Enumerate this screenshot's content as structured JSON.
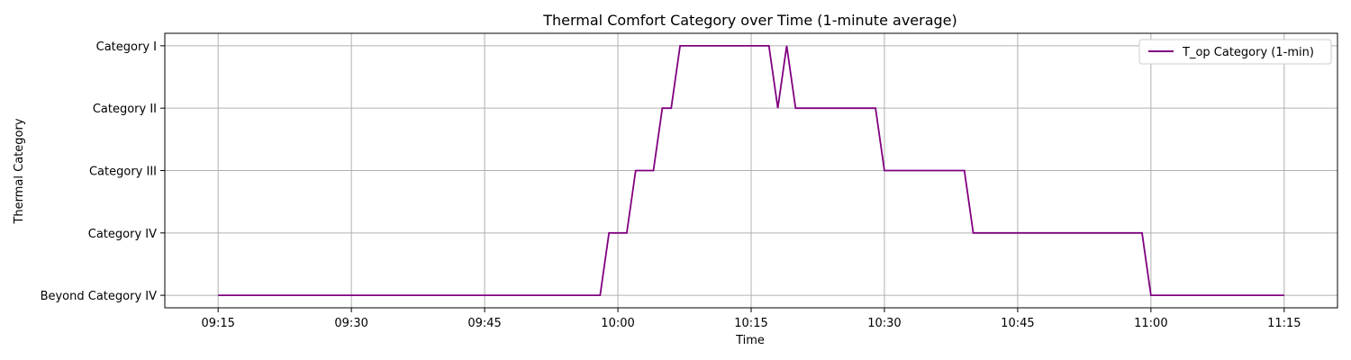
{
  "chart_data": {
    "type": "line",
    "title": "Thermal Comfort Category over Time (1-minute average)",
    "xlabel": "Time",
    "ylabel": "Thermal Category",
    "x_ticks": [
      "09:15",
      "09:30",
      "09:45",
      "10:00",
      "10:15",
      "10:30",
      "10:45",
      "11:00",
      "11:15"
    ],
    "xlim": [
      "09:09",
      "11:21"
    ],
    "y_categories": [
      "Beyond Category IV",
      "Category IV",
      "Category III",
      "Category II",
      "Category I"
    ],
    "ylim": [
      -0.2,
      4.2
    ],
    "grid": true,
    "legend_position": "top-right",
    "series": [
      {
        "name": "T_op Category (1-min)",
        "color": "#800080",
        "points": [
          {
            "x": "09:15",
            "y": "Beyond Category IV"
          },
          {
            "x": "09:58",
            "y": "Beyond Category IV"
          },
          {
            "x": "09:59",
            "y": "Category IV"
          },
          {
            "x": "10:01",
            "y": "Category IV"
          },
          {
            "x": "10:02",
            "y": "Category III"
          },
          {
            "x": "10:04",
            "y": "Category III"
          },
          {
            "x": "10:05",
            "y": "Category II"
          },
          {
            "x": "10:06",
            "y": "Category II"
          },
          {
            "x": "10:07",
            "y": "Category I"
          },
          {
            "x": "10:17",
            "y": "Category I"
          },
          {
            "x": "10:18",
            "y": "Category II"
          },
          {
            "x": "10:19",
            "y": "Category I"
          },
          {
            "x": "10:20",
            "y": "Category II"
          },
          {
            "x": "10:29",
            "y": "Category II"
          },
          {
            "x": "10:30",
            "y": "Category III"
          },
          {
            "x": "10:39",
            "y": "Category III"
          },
          {
            "x": "10:40",
            "y": "Category IV"
          },
          {
            "x": "10:59",
            "y": "Category IV"
          },
          {
            "x": "11:00",
            "y": "Beyond Category IV"
          },
          {
            "x": "11:15",
            "y": "Beyond Category IV"
          }
        ]
      }
    ]
  }
}
